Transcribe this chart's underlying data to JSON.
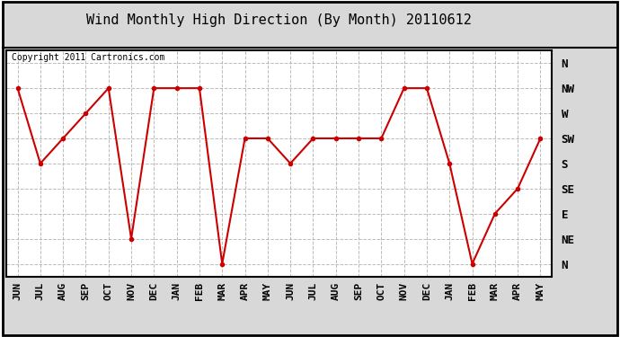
{
  "title": "Wind Monthly High Direction (By Month) 20110612",
  "copyright": "Copyright 2011 Cartronics.com",
  "x_labels": [
    "JUN",
    "JUL",
    "AUG",
    "SEP",
    "OCT",
    "NOV",
    "DEC",
    "JAN",
    "FEB",
    "MAR",
    "APR",
    "MAY",
    "JUN",
    "JUL",
    "AUG",
    "SEP",
    "OCT",
    "NOV",
    "DEC",
    "JAN",
    "FEB",
    "MAR",
    "APR",
    "MAY"
  ],
  "y_labels": [
    "N",
    "NE",
    "E",
    "SE",
    "S",
    "SW",
    "W",
    "NW",
    "N"
  ],
  "y_values": [
    0,
    1,
    2,
    3,
    4,
    5,
    6,
    7,
    8
  ],
  "data_values": [
    7,
    4,
    5,
    6,
    7,
    1,
    7,
    7,
    7,
    0,
    5,
    5,
    4,
    5,
    5,
    5,
    5,
    7,
    7,
    4,
    0,
    2,
    3,
    5
  ],
  "line_color": "#cc0000",
  "marker": "o",
  "marker_size": 3,
  "bg_color": "#d8d8d8",
  "plot_bg_color": "#ffffff",
  "grid_color": "#aaaaaa",
  "title_fontsize": 11,
  "copyright_fontsize": 7,
  "tick_fontsize": 8,
  "label_fontsize": 9
}
